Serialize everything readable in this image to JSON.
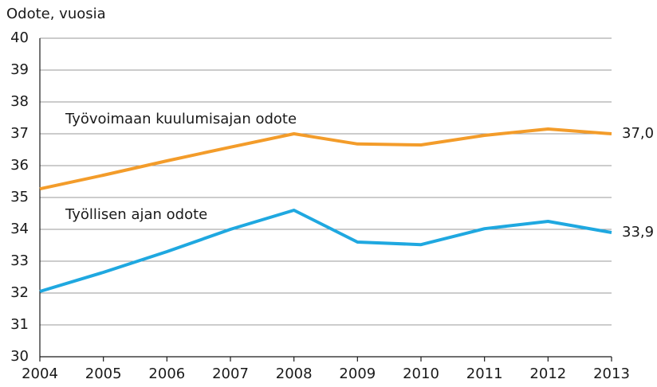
{
  "chart_data": {
    "type": "line",
    "y_label": "Odote, vuosia",
    "categories": [
      "2004",
      "2005",
      "2006",
      "2007",
      "2008",
      "2009",
      "2010",
      "2011",
      "2012",
      "2013"
    ],
    "series": [
      {
        "name": "Työvoimaan kuulumisajan odote",
        "color": "#f39c2a",
        "values": [
          35.27,
          35.7,
          36.15,
          36.58,
          37.0,
          36.68,
          36.65,
          36.95,
          37.15,
          37.0
        ],
        "value_labels": [
          null,
          null,
          null,
          null,
          null,
          null,
          null,
          null,
          null,
          "37,0"
        ]
      },
      {
        "name": "Työllisen ajan odote",
        "color": "#1fa8e0",
        "values": [
          32.05,
          32.65,
          33.3,
          34.0,
          34.6,
          33.6,
          33.52,
          34.02,
          34.25,
          33.9
        ],
        "value_labels": [
          null,
          null,
          null,
          null,
          null,
          null,
          null,
          null,
          null,
          "33,9"
        ]
      }
    ],
    "ylim": [
      30,
      40
    ],
    "yticks": [
      30,
      31,
      32,
      33,
      34,
      35,
      36,
      37,
      38,
      39,
      40
    ],
    "grid": true
  }
}
